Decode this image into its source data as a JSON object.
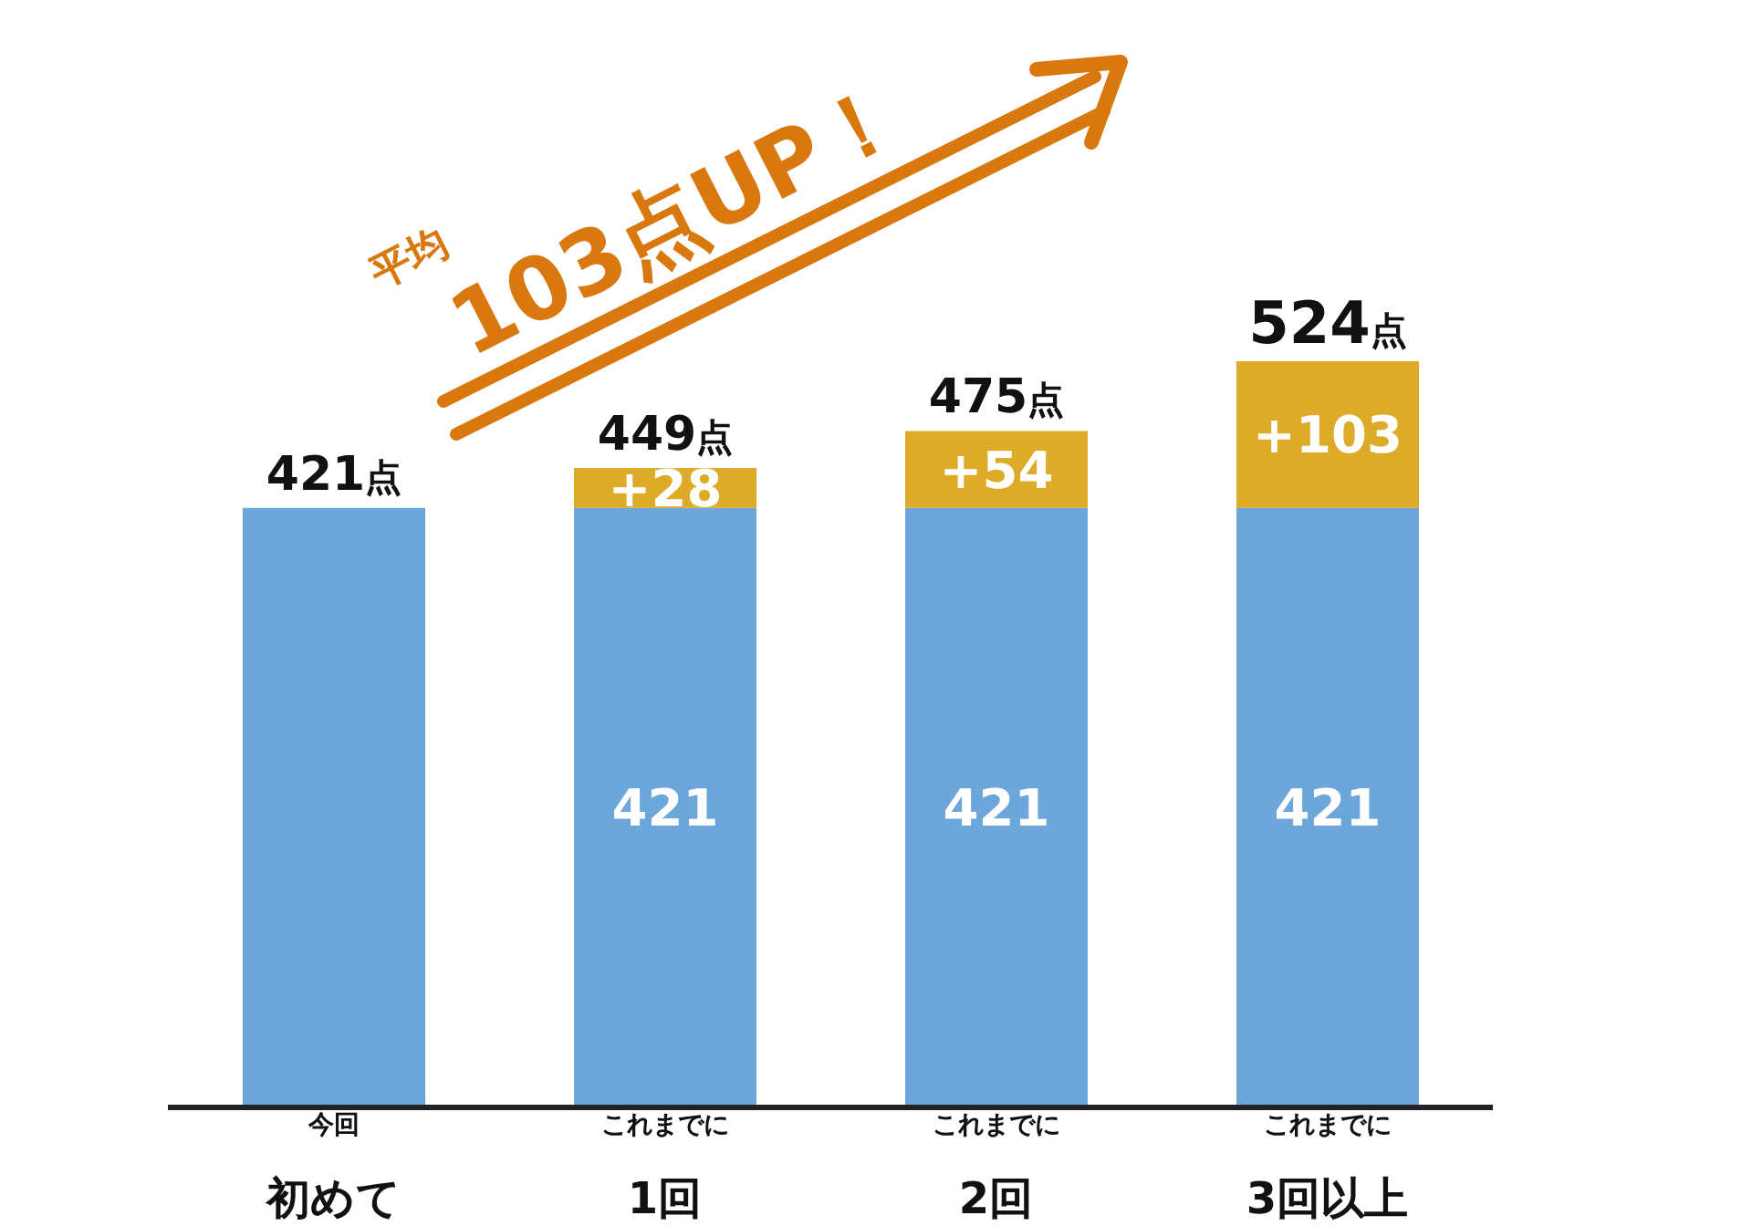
{
  "chart_data": {
    "type": "bar",
    "stacked": true,
    "categories": [
      "$^{今回}$初めて",
      "$^{これまでに}$1回",
      "$^{これまでに}$2回",
      "$^{これまでに}$3回以上"
    ],
    "series": [
      {
        "color": "#6ca6da",
        "values": [
          421,
          421,
          421,
          421
        ],
        "value_labels": [
          null,
          "421",
          "421",
          "421"
        ]
      },
      {
        "color": "#deab28",
        "values": [
          0,
          28,
          54,
          103
        ],
        "value_labels": [
          null,
          "+28",
          "+54",
          "+103"
        ]
      }
    ],
    "totals": [
      "421点",
      "449点",
      "475点",
      "524点"
    ],
    "annotations": [
      "平均",
      "103点UP！"
    ]
  }
}
